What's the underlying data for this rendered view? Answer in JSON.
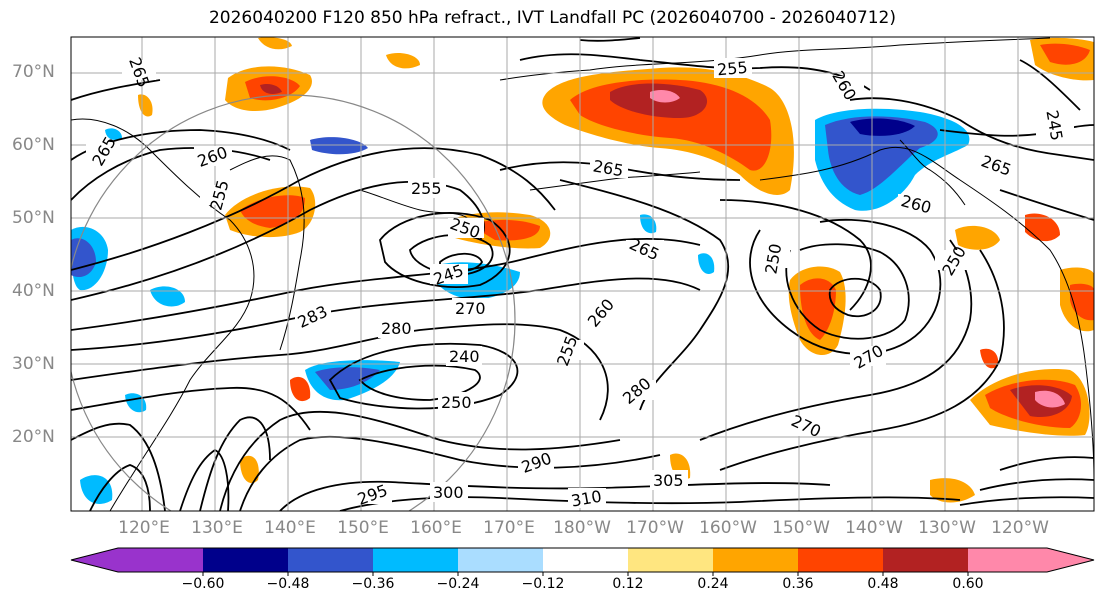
{
  "title": "2026040200 F120 850 hPa refract., IVT Landfall PC (2026040700 - 2026040712)",
  "lat_labels": [
    "70°N",
    "60°N",
    "50°N",
    "40°N",
    "30°N",
    "20°N"
  ],
  "lon_labels": [
    "120°E",
    "130°E",
    "140°E",
    "150°E",
    "160°E",
    "170°E",
    "180°W",
    "170°W",
    "160°W",
    "150°W",
    "140°W",
    "130°W",
    "120°W"
  ],
  "contour_labels": [
    "265",
    "260",
    "255",
    "265",
    "255",
    "250",
    "245",
    "270",
    "280",
    "283",
    "260",
    "255",
    "240",
    "250",
    "290",
    "300",
    "295",
    "310",
    "280",
    "270",
    "250",
    "265",
    "270",
    "260",
    "265",
    "260",
    "250",
    "245",
    "305"
  ],
  "colorbar": {
    "ticks": [
      "−0.60",
      "−0.48",
      "−0.36",
      "−0.24",
      "−0.12",
      "0.12",
      "0.24",
      "0.36",
      "0.48",
      "0.60"
    ],
    "colors": [
      "#9933cc",
      "#00008b",
      "#3355cc",
      "#00bbff",
      "#aaddff",
      "#ffffff",
      "#ffe680",
      "#ffa500",
      "#ff4400",
      "#b22222",
      "#ff88aa"
    ]
  },
  "colors": {
    "axis_label": "#888888",
    "grid": "#aaaaaa",
    "contour": "#000000"
  }
}
